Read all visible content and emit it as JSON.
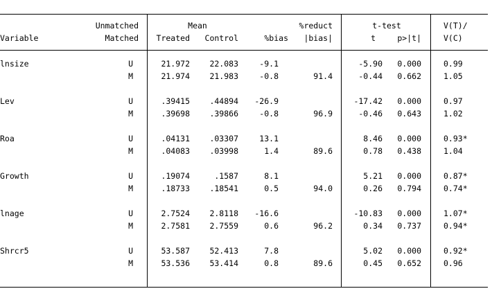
{
  "headers": {
    "variable": "Variable",
    "unmatched": "Unmatched",
    "matched": "Matched",
    "mean": "Mean",
    "treated": "Treated",
    "control": "Control",
    "bias": "%bias",
    "reduct": "%reduct",
    "abs_bias": "|bias|",
    "ttest": "t-test",
    "t": "t",
    "p": "p>|t|",
    "vratio_top": "V(T)/",
    "vratio_bottom": "V(C)"
  },
  "groups": [
    {
      "variable": "lnsize",
      "rows": [
        {
          "sample": "U",
          "treated": "21.972",
          "control": "22.083",
          "bias": "-9.1",
          "reduct": "",
          "t": "-5.90",
          "p": "0.000",
          "vratio": "0.99"
        },
        {
          "sample": "M",
          "treated": "21.974",
          "control": "21.983",
          "bias": "-0.8",
          "reduct": "91.4",
          "t": "-0.44",
          "p": "0.662",
          "vratio": "1.05"
        }
      ]
    },
    {
      "variable": "Lev",
      "rows": [
        {
          "sample": "U",
          "treated": ".39415",
          "control": ".44894",
          "bias": "-26.9",
          "reduct": "",
          "t": "-17.42",
          "p": "0.000",
          "vratio": "0.97"
        },
        {
          "sample": "M",
          "treated": ".39698",
          "control": ".39866",
          "bias": "-0.8",
          "reduct": "96.9",
          "t": "-0.46",
          "p": "0.643",
          "vratio": "1.02"
        }
      ]
    },
    {
      "variable": "Roa",
      "rows": [
        {
          "sample": "U",
          "treated": ".04131",
          "control": ".03307",
          "bias": "13.1",
          "reduct": "",
          "t": "8.46",
          "p": "0.000",
          "vratio": "0.93*"
        },
        {
          "sample": "M",
          "treated": ".04083",
          "control": ".03998",
          "bias": "1.4",
          "reduct": "89.6",
          "t": "0.78",
          "p": "0.438",
          "vratio": "1.04"
        }
      ]
    },
    {
      "variable": "Growth",
      "rows": [
        {
          "sample": "U",
          "treated": ".19074",
          "control": ".1587",
          "bias": "8.1",
          "reduct": "",
          "t": "5.21",
          "p": "0.000",
          "vratio": "0.87*"
        },
        {
          "sample": "M",
          "treated": ".18733",
          "control": ".18541",
          "bias": "0.5",
          "reduct": "94.0",
          "t": "0.26",
          "p": "0.794",
          "vratio": "0.74*"
        }
      ]
    },
    {
      "variable": "lnage",
      "rows": [
        {
          "sample": "U",
          "treated": "2.7524",
          "control": "2.8118",
          "bias": "-16.6",
          "reduct": "",
          "t": "-10.83",
          "p": "0.000",
          "vratio": "1.07*"
        },
        {
          "sample": "M",
          "treated": "2.7581",
          "control": "2.7559",
          "bias": "0.6",
          "reduct": "96.2",
          "t": "0.34",
          "p": "0.737",
          "vratio": "0.94*"
        }
      ]
    },
    {
      "variable": "Shrcr5",
      "rows": [
        {
          "sample": "U",
          "treated": "53.587",
          "control": "52.413",
          "bias": "7.8",
          "reduct": "",
          "t": "5.02",
          "p": "0.000",
          "vratio": "0.92*"
        },
        {
          "sample": "M",
          "treated": "53.536",
          "control": "53.414",
          "bias": "0.8",
          "reduct": "89.6",
          "t": "0.45",
          "p": "0.652",
          "vratio": "0.96"
        }
      ]
    }
  ]
}
